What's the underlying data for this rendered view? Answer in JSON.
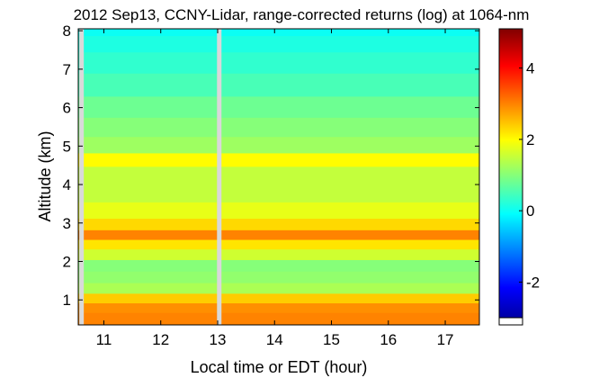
{
  "chart_data": {
    "type": "heatmap",
    "title": "2012 Sep13, CCNY-Lidar, range-corrected returns (log) at 1064-nm",
    "xlabel": "Local time or EDT (hour)",
    "ylabel": "Altitude (km)",
    "xlim": [
      10.55,
      17.6
    ],
    "ylim": [
      0.35,
      8.05
    ],
    "x_ticks": [
      "11",
      "12",
      "13",
      "14",
      "15",
      "16",
      "17"
    ],
    "y_ticks": [
      "1",
      "2",
      "3",
      "4",
      "5",
      "6",
      "7",
      "8"
    ],
    "colorbar": {
      "colormap": "jet",
      "range": [
        -3.2,
        5.1
      ],
      "ticks": [
        "-2",
        "0",
        "2",
        "4"
      ]
    },
    "data_gap_hours": [
      10.6,
      13.02
    ],
    "bands": [
      {
        "altitude_km": 0.55,
        "value": 3.0
      },
      {
        "altitude_km": 0.8,
        "value": 2.9
      },
      {
        "altitude_km": 1.05,
        "value": 2.4
      },
      {
        "altitude_km": 1.3,
        "value": 1.3
      },
      {
        "altitude_km": 1.6,
        "value": 1.1
      },
      {
        "altitude_km": 1.9,
        "value": 1.0
      },
      {
        "altitude_km": 2.2,
        "value": 1.6
      },
      {
        "altitude_km": 2.45,
        "value": 2.2
      },
      {
        "altitude_km": 2.7,
        "value": 3.0
      },
      {
        "altitude_km": 2.95,
        "value": 2.3
      },
      {
        "altitude_km": 3.3,
        "value": 1.8
      },
      {
        "altitude_km": 3.8,
        "value": 1.5
      },
      {
        "altitude_km": 4.3,
        "value": 1.5
      },
      {
        "altitude_km": 4.65,
        "value": 2.0
      },
      {
        "altitude_km": 5.0,
        "value": 1.2
      },
      {
        "altitude_km": 5.5,
        "value": 1.0
      },
      {
        "altitude_km": 6.0,
        "value": 0.8
      },
      {
        "altitude_km": 6.6,
        "value": 0.5
      },
      {
        "altitude_km": 7.2,
        "value": 0.3
      },
      {
        "altitude_km": 7.7,
        "value": 0.15
      },
      {
        "altitude_km": 8.05,
        "value": 0.0
      }
    ],
    "colors": {
      "gap": "#d9d9d9",
      "frame": "#000000"
    }
  }
}
